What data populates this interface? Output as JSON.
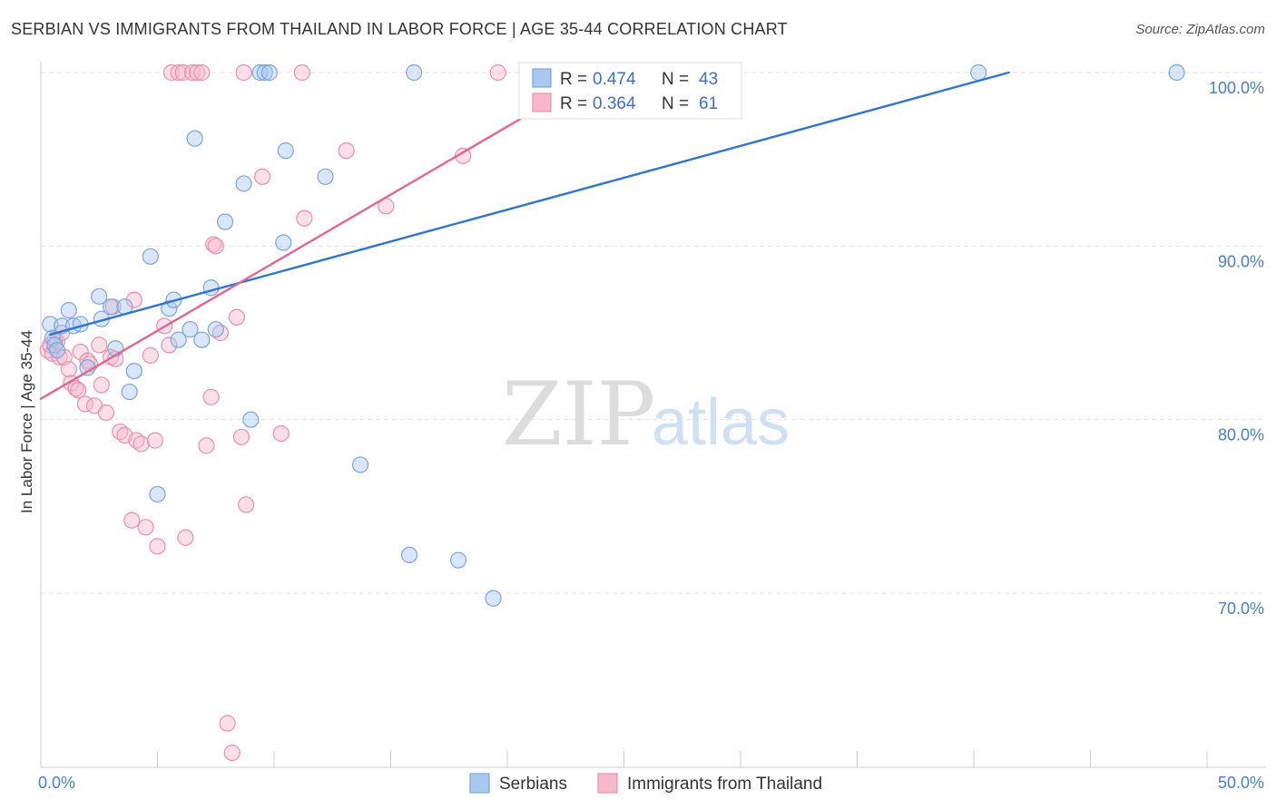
{
  "header": {
    "title": "SERBIAN VS IMMIGRANTS FROM THAILAND IN LABOR FORCE | AGE 35-44 CORRELATION CHART",
    "source": "Source: ZipAtlas.com"
  },
  "watermark": {
    "zip": "ZIP",
    "atlas": "atlas"
  },
  "colors": {
    "serbians_fill": "#a9c8ef",
    "serbians_stroke": "#7aa5dc",
    "serbians_line": "#2f74d0",
    "thai_fill": "#f6b8cb",
    "thai_stroke": "#ea8fab",
    "thai_line": "#e0678f",
    "grid": "#e3e3e3",
    "tick_text": "#4a7cc7"
  },
  "legend": {
    "rows": [
      {
        "r_label": "R =",
        "r_value": "0.474",
        "n_label": "N =",
        "n_value": "43"
      },
      {
        "r_label": "R =",
        "r_value": "0.364",
        "n_label": "N =",
        "n_value": "61"
      }
    ]
  },
  "chart_data": {
    "type": "scatter",
    "title": "SERBIAN VS IMMIGRANTS FROM THAILAND IN LABOR FORCE | AGE 35-44 CORRELATION CHART",
    "xlabel": "",
    "ylabel": "In Labor Force | Age 35-44",
    "xlim": [
      0,
      50
    ],
    "ylim": [
      60,
      100.5
    ],
    "x_tick_labels": [
      {
        "value": 0,
        "label": "0.0%"
      },
      {
        "value": 50,
        "label": "50.0%"
      }
    ],
    "y_tick_labels": [
      {
        "value": 70,
        "label": "70.0%"
      },
      {
        "value": 80,
        "label": "80.0%"
      },
      {
        "value": 90,
        "label": "90.0%"
      },
      {
        "value": 100,
        "label": "100.0%"
      }
    ],
    "grid": true,
    "legend_position": "top-center",
    "series": [
      {
        "name": "Serbians",
        "r": 0.474,
        "n": 43,
        "trend": {
          "x": [
            0.4,
            41.5
          ],
          "y": [
            84.9,
            100.0
          ]
        },
        "points": [
          [
            0.4,
            85.5
          ],
          [
            0.5,
            84.7
          ],
          [
            0.6,
            84.3
          ],
          [
            0.7,
            84.0
          ],
          [
            0.9,
            85.4
          ],
          [
            1.2,
            86.3
          ],
          [
            1.4,
            85.4
          ],
          [
            1.7,
            85.5
          ],
          [
            2.0,
            83.0
          ],
          [
            2.5,
            87.1
          ],
          [
            2.6,
            85.8
          ],
          [
            3.0,
            86.5
          ],
          [
            3.2,
            84.1
          ],
          [
            3.6,
            86.5
          ],
          [
            3.8,
            81.6
          ],
          [
            4.0,
            82.8
          ],
          [
            4.7,
            89.4
          ],
          [
            5.0,
            75.7
          ],
          [
            5.5,
            86.4
          ],
          [
            5.7,
            86.9
          ],
          [
            5.9,
            84.6
          ],
          [
            6.4,
            85.2
          ],
          [
            6.6,
            96.2
          ],
          [
            6.9,
            84.6
          ],
          [
            7.3,
            87.6
          ],
          [
            7.5,
            85.2
          ],
          [
            7.9,
            91.4
          ],
          [
            8.7,
            93.6
          ],
          [
            9.0,
            80.0
          ],
          [
            9.4,
            100.0
          ],
          [
            9.6,
            100.0
          ],
          [
            9.8,
            100.0
          ],
          [
            10.4,
            90.2
          ],
          [
            10.5,
            95.5
          ],
          [
            12.2,
            94.0
          ],
          [
            13.7,
            77.4
          ],
          [
            15.8,
            72.2
          ],
          [
            16.0,
            100.0
          ],
          [
            17.9,
            71.9
          ],
          [
            19.4,
            69.7
          ],
          [
            21.1,
            100.0
          ],
          [
            40.2,
            100.0
          ],
          [
            48.7,
            100.0
          ]
        ]
      },
      {
        "name": "Immigrants from Thailand",
        "r": 0.364,
        "n": 61,
        "trend": {
          "x": [
            0.0,
            21.8
          ],
          "y": [
            81.2,
            98.3
          ]
        },
        "points": [
          [
            0.3,
            84.0
          ],
          [
            0.4,
            84.3
          ],
          [
            0.5,
            83.8
          ],
          [
            0.6,
            84.6
          ],
          [
            0.7,
            84.5
          ],
          [
            0.8,
            83.6
          ],
          [
            0.9,
            85.0
          ],
          [
            1.0,
            83.6
          ],
          [
            1.2,
            82.9
          ],
          [
            1.3,
            82.1
          ],
          [
            1.5,
            81.8
          ],
          [
            1.6,
            81.7
          ],
          [
            1.7,
            83.9
          ],
          [
            1.9,
            80.9
          ],
          [
            2.0,
            83.4
          ],
          [
            2.1,
            83.2
          ],
          [
            2.3,
            80.8
          ],
          [
            2.5,
            84.3
          ],
          [
            2.6,
            82.0
          ],
          [
            2.8,
            80.4
          ],
          [
            3.0,
            83.6
          ],
          [
            3.1,
            86.5
          ],
          [
            3.2,
            83.5
          ],
          [
            3.4,
            79.3
          ],
          [
            3.6,
            79.1
          ],
          [
            3.9,
            74.2
          ],
          [
            4.0,
            86.9
          ],
          [
            4.1,
            78.8
          ],
          [
            4.3,
            78.6
          ],
          [
            4.5,
            73.8
          ],
          [
            4.7,
            83.7
          ],
          [
            4.9,
            78.8
          ],
          [
            5.0,
            72.7
          ],
          [
            5.3,
            85.4
          ],
          [
            5.5,
            84.3
          ],
          [
            5.6,
            100.0
          ],
          [
            5.9,
            100.0
          ],
          [
            6.1,
            100.0
          ],
          [
            6.2,
            73.2
          ],
          [
            6.5,
            100.0
          ],
          [
            6.7,
            100.0
          ],
          [
            6.9,
            100.0
          ],
          [
            7.1,
            78.5
          ],
          [
            7.3,
            81.3
          ],
          [
            7.4,
            90.1
          ],
          [
            7.5,
            90.0
          ],
          [
            7.7,
            85.0
          ],
          [
            8.0,
            62.5
          ],
          [
            8.2,
            60.8
          ],
          [
            8.4,
            85.9
          ],
          [
            8.6,
            79.0
          ],
          [
            8.7,
            100.0
          ],
          [
            8.8,
            75.1
          ],
          [
            9.5,
            94.0
          ],
          [
            10.3,
            79.2
          ],
          [
            11.2,
            100.0
          ],
          [
            11.3,
            91.6
          ],
          [
            13.1,
            95.5
          ],
          [
            14.8,
            92.3
          ],
          [
            18.1,
            95.2
          ],
          [
            19.6,
            100.0
          ]
        ]
      }
    ]
  }
}
